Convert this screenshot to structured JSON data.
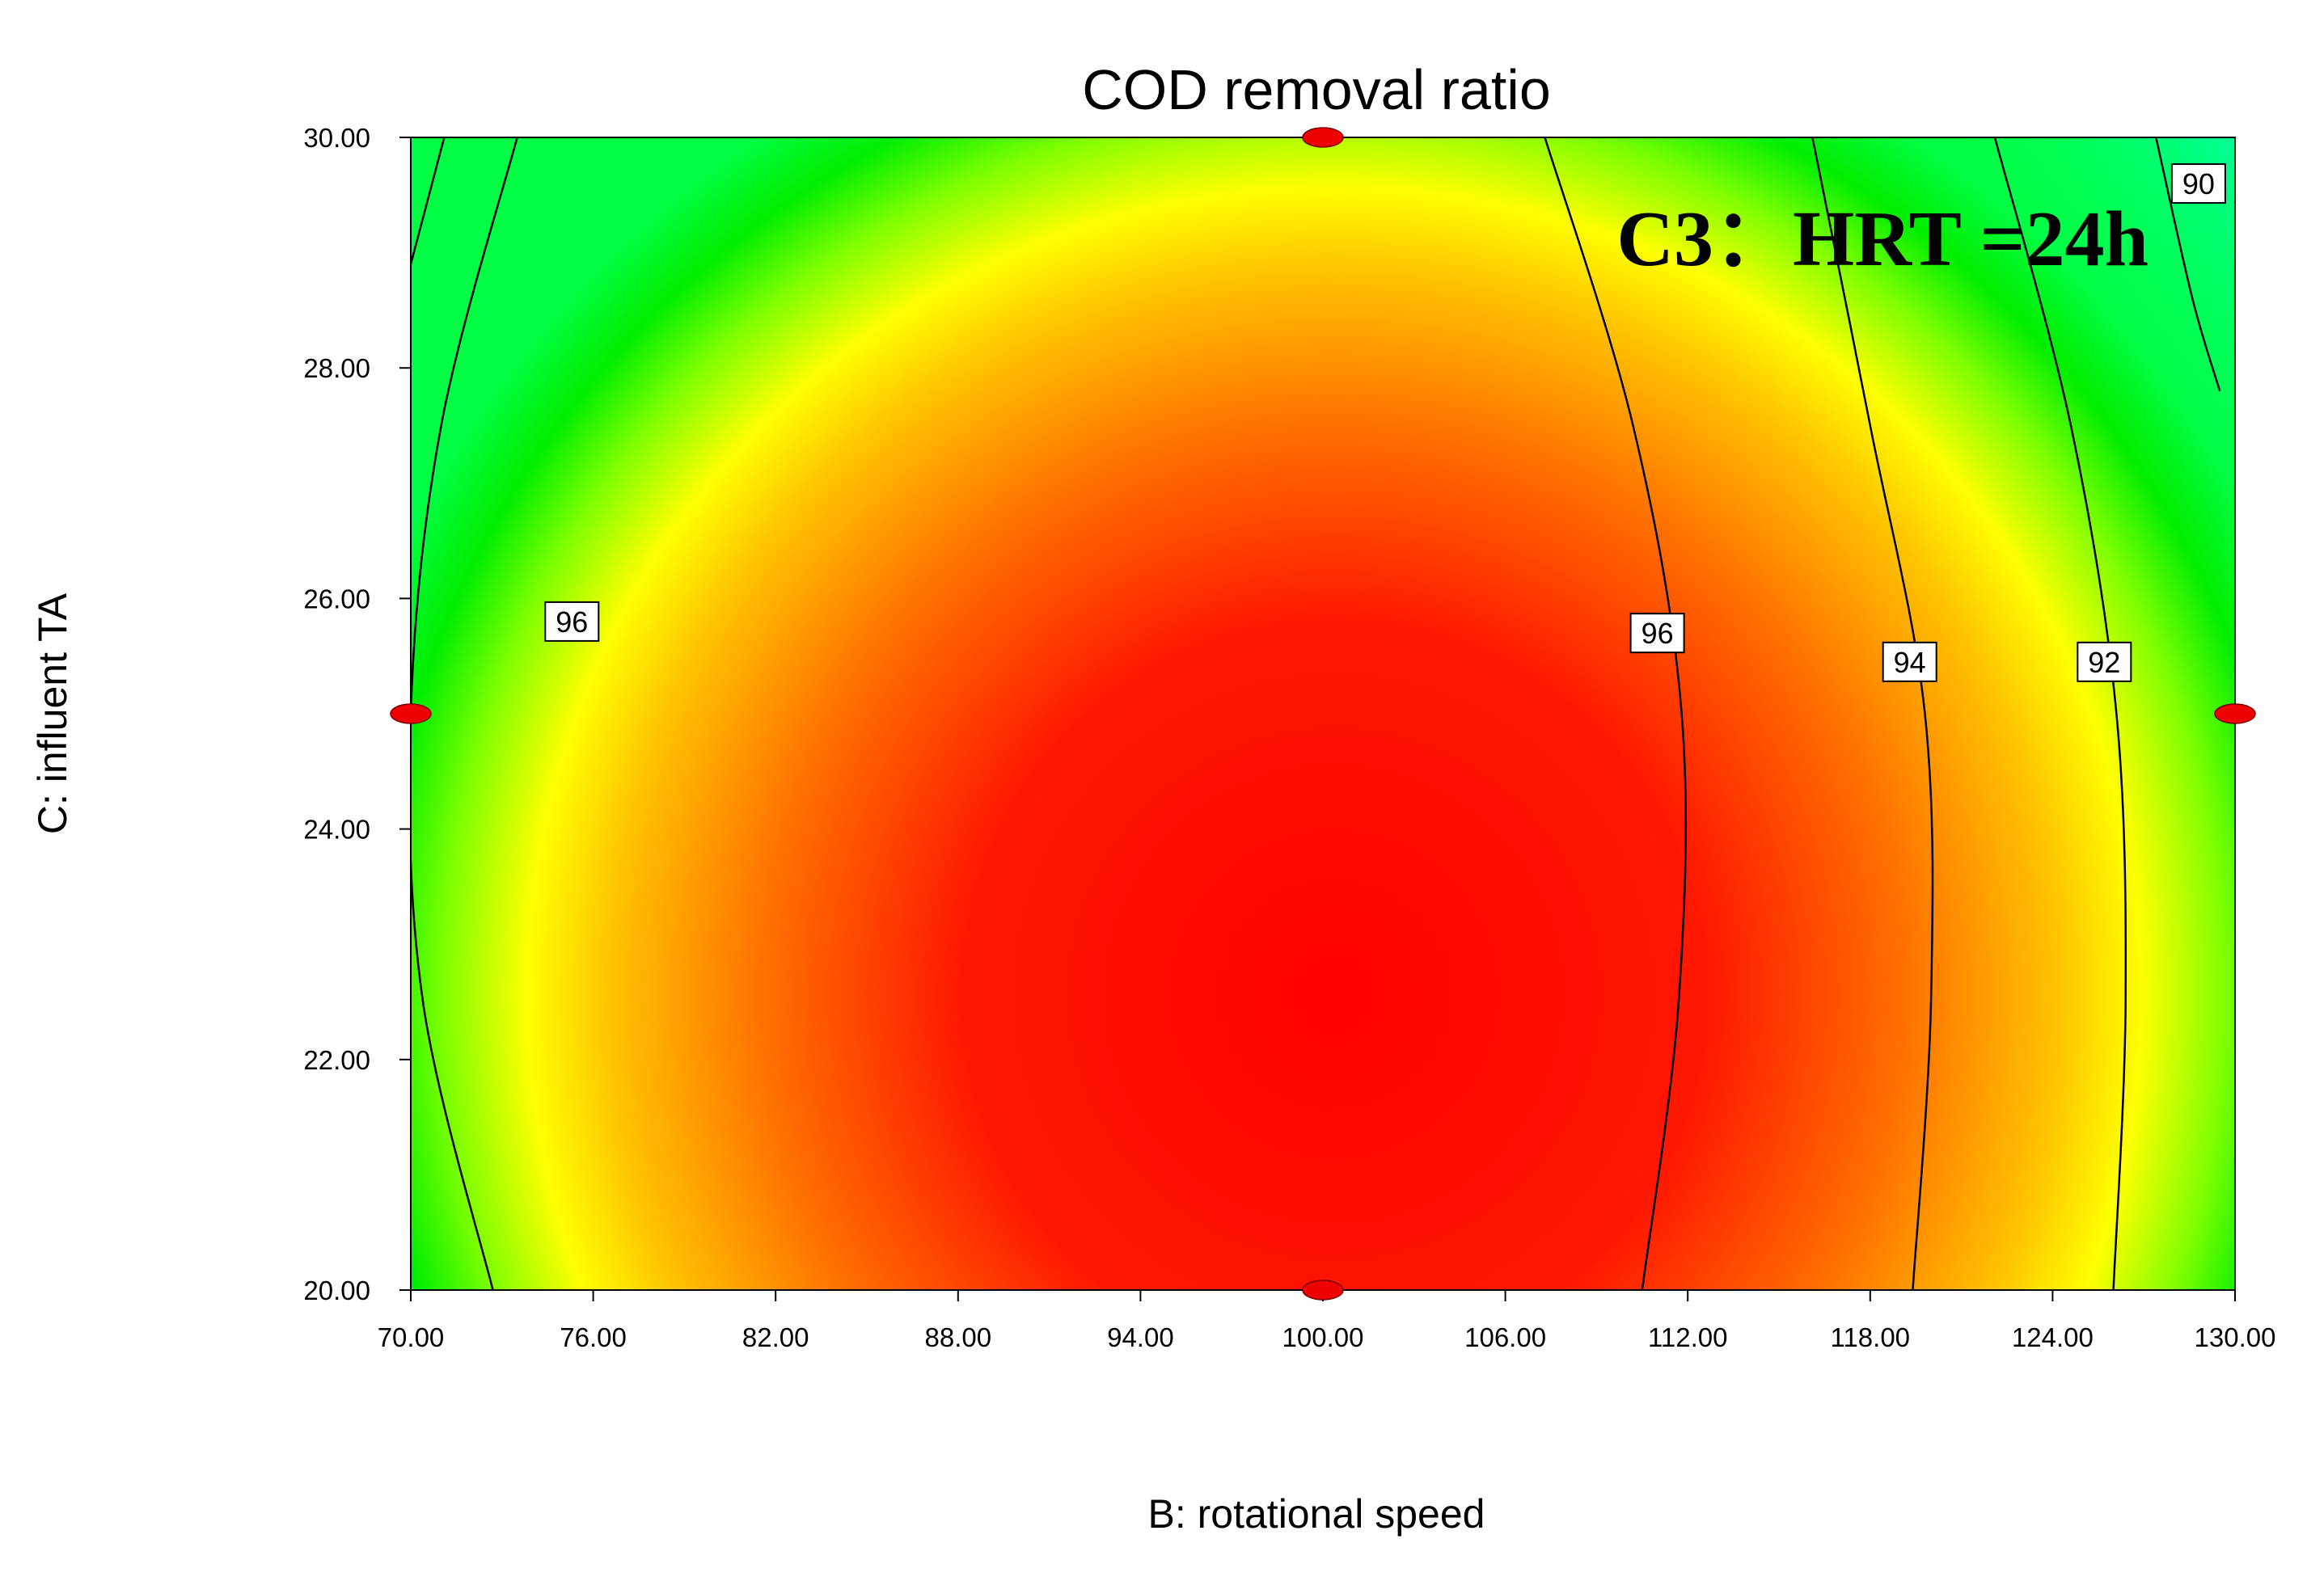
{
  "chart_data": {
    "type": "contour",
    "title": "COD removal ratio",
    "xlabel": "B: rotational speed",
    "ylabel": "C: influent TA",
    "xlim": [
      70,
      130
    ],
    "ylim": [
      20,
      30
    ],
    "x_ticks": [
      "70.00",
      "76.00",
      "82.00",
      "88.00",
      "94.00",
      "100.00",
      "106.00",
      "112.00",
      "118.00",
      "124.00",
      "130.00"
    ],
    "y_ticks": [
      "20.00",
      "22.00",
      "24.00",
      "26.00",
      "28.00",
      "30.00"
    ],
    "annotation": "C3：HRT =24h",
    "colors": {
      "high": "#ff0000",
      "mid": "#ffff00",
      "low": "#00ff44",
      "point": "#ee0000",
      "line": "#000000"
    },
    "contours": [
      {
        "level": "96",
        "label": "96",
        "points": [
          [
            73.5,
            30
          ],
          [
            71.0,
            27.5
          ],
          [
            70.0,
            25.0
          ],
          [
            70.4,
            22.5
          ],
          [
            72.7,
            20
          ]
        ]
      },
      {
        "level": "96",
        "label": "96",
        "points": [
          [
            107.3,
            30
          ],
          [
            110.2,
            27.5
          ],
          [
            111.8,
            25.0
          ],
          [
            111.7,
            22.5
          ],
          [
            110.5,
            20
          ]
        ]
      },
      {
        "level": "94",
        "label": "94",
        "points": [
          [
            116.1,
            30
          ],
          [
            118.0,
            27.5
          ],
          [
            119.8,
            25.0
          ],
          [
            120.0,
            22.5
          ],
          [
            119.4,
            20
          ]
        ]
      },
      {
        "level": "92",
        "label": "92",
        "points": [
          [
            122.1,
            30
          ],
          [
            124.6,
            27.5
          ],
          [
            126.1,
            25.0
          ],
          [
            126.4,
            22.5
          ],
          [
            126.0,
            20
          ]
        ]
      },
      {
        "level": "90",
        "label": "90",
        "points": [
          [
            127.4,
            30
          ],
          [
            128.6,
            28.6
          ],
          [
            129.5,
            27.8
          ]
        ]
      },
      {
        "level": "94",
        "label": "",
        "points": [
          [
            71.1,
            30
          ],
          [
            70.0,
            28.9
          ]
        ]
      }
    ],
    "contour_labels": [
      {
        "text": "96",
        "x": 75.3,
        "y": 25.8
      },
      {
        "text": "96",
        "x": 111.0,
        "y": 25.7
      },
      {
        "text": "94",
        "x": 119.3,
        "y": 25.45
      },
      {
        "text": "92",
        "x": 125.7,
        "y": 25.45
      },
      {
        "text": "90",
        "x": 128.8,
        "y": 29.6
      }
    ],
    "design_points": [
      {
        "x": 100,
        "y": 30
      },
      {
        "x": 100,
        "y": 20
      },
      {
        "x": 70,
        "y": 25
      },
      {
        "x": 130,
        "y": 25
      }
    ]
  }
}
